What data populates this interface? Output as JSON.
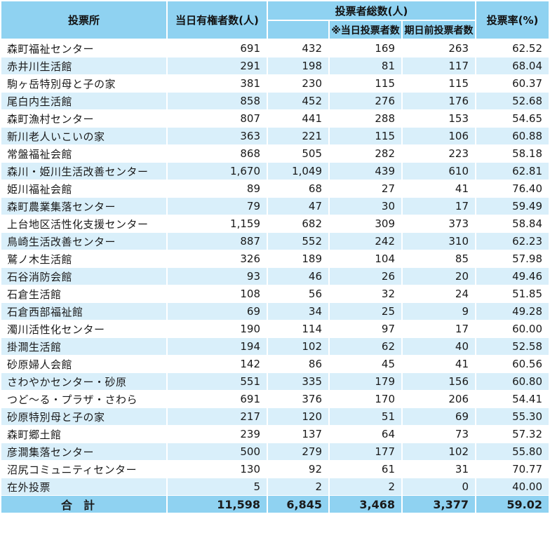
{
  "header": {
    "col_station": "投票所",
    "col_registered": "当日有権者数(人)",
    "col_voters_total": "投票者総数(人)",
    "col_voters_day": "※当日投票者数",
    "col_voters_early": "期日前投票者数",
    "col_rate": "投票率(%)"
  },
  "rows": [
    {
      "name": "森町福祉センター",
      "registered": "691",
      "total": "432",
      "day": "169",
      "early": "263",
      "rate": "62.52"
    },
    {
      "name": "赤井川生活館",
      "registered": "291",
      "total": "198",
      "day": "81",
      "early": "117",
      "rate": "68.04"
    },
    {
      "name": "駒ヶ岳特別母と子の家",
      "registered": "381",
      "total": "230",
      "day": "115",
      "early": "115",
      "rate": "60.37"
    },
    {
      "name": "尾白内生活館",
      "registered": "858",
      "total": "452",
      "day": "276",
      "early": "176",
      "rate": "52.68"
    },
    {
      "name": "森町漁村センター",
      "registered": "807",
      "total": "441",
      "day": "288",
      "early": "153",
      "rate": "54.65"
    },
    {
      "name": "新川老人いこいの家",
      "registered": "363",
      "total": "221",
      "day": "115",
      "early": "106",
      "rate": "60.88"
    },
    {
      "name": "常盤福祉会館",
      "registered": "868",
      "total": "505",
      "day": "282",
      "early": "223",
      "rate": "58.18"
    },
    {
      "name": "森川・姫川生活改善センター",
      "registered": "1,670",
      "total": "1,049",
      "day": "439",
      "early": "610",
      "rate": "62.81"
    },
    {
      "name": "姫川福祉会館",
      "registered": "89",
      "total": "68",
      "day": "27",
      "early": "41",
      "rate": "76.40"
    },
    {
      "name": "森町農業集落センター",
      "registered": "79",
      "total": "47",
      "day": "30",
      "early": "17",
      "rate": "59.49"
    },
    {
      "name": "上台地区活性化支援センター",
      "registered": "1,159",
      "total": "682",
      "day": "309",
      "early": "373",
      "rate": "58.84"
    },
    {
      "name": "鳥崎生活改善センター",
      "registered": "887",
      "total": "552",
      "day": "242",
      "early": "310",
      "rate": "62.23"
    },
    {
      "name": "鷲ノ木生活館",
      "registered": "326",
      "total": "189",
      "day": "104",
      "early": "85",
      "rate": "57.98"
    },
    {
      "name": "石谷消防会館",
      "registered": "93",
      "total": "46",
      "day": "26",
      "early": "20",
      "rate": "49.46"
    },
    {
      "name": "石倉生活館",
      "registered": "108",
      "total": "56",
      "day": "32",
      "early": "24",
      "rate": "51.85"
    },
    {
      "name": "石倉西部福祉館",
      "registered": "69",
      "total": "34",
      "day": "25",
      "early": "9",
      "rate": "49.28"
    },
    {
      "name": "濁川活性化センター",
      "registered": "190",
      "total": "114",
      "day": "97",
      "early": "17",
      "rate": "60.00"
    },
    {
      "name": "掛澗生活館",
      "registered": "194",
      "total": "102",
      "day": "62",
      "early": "40",
      "rate": "52.58"
    },
    {
      "name": "砂原婦人会館",
      "registered": "142",
      "total": "86",
      "day": "45",
      "early": "41",
      "rate": "60.56"
    },
    {
      "name": "さわやかセンター・砂原",
      "registered": "551",
      "total": "335",
      "day": "179",
      "early": "156",
      "rate": "60.80"
    },
    {
      "name": "つど～る・プラザ・さわら",
      "registered": "691",
      "total": "376",
      "day": "170",
      "early": "206",
      "rate": "54.41"
    },
    {
      "name": "砂原特別母と子の家",
      "registered": "217",
      "total": "120",
      "day": "51",
      "early": "69",
      "rate": "55.30"
    },
    {
      "name": "森町郷土館",
      "registered": "239",
      "total": "137",
      "day": "64",
      "early": "73",
      "rate": "57.32"
    },
    {
      "name": "彦澗集落センター",
      "registered": "500",
      "total": "279",
      "day": "177",
      "early": "102",
      "rate": "55.80"
    },
    {
      "name": "沼尻コミュニティセンター",
      "registered": "130",
      "total": "92",
      "day": "61",
      "early": "31",
      "rate": "70.77"
    },
    {
      "name": "在外投票",
      "registered": "5",
      "total": "2",
      "day": "2",
      "early": "0",
      "rate": "40.00"
    }
  ],
  "total": {
    "name": "合計",
    "registered": "11,598",
    "total": "6,845",
    "day": "3,468",
    "early": "3,377",
    "rate": "59.02"
  },
  "colors": {
    "header_bg": "#8fd2f1",
    "stripe_bg": "#d9effa"
  }
}
